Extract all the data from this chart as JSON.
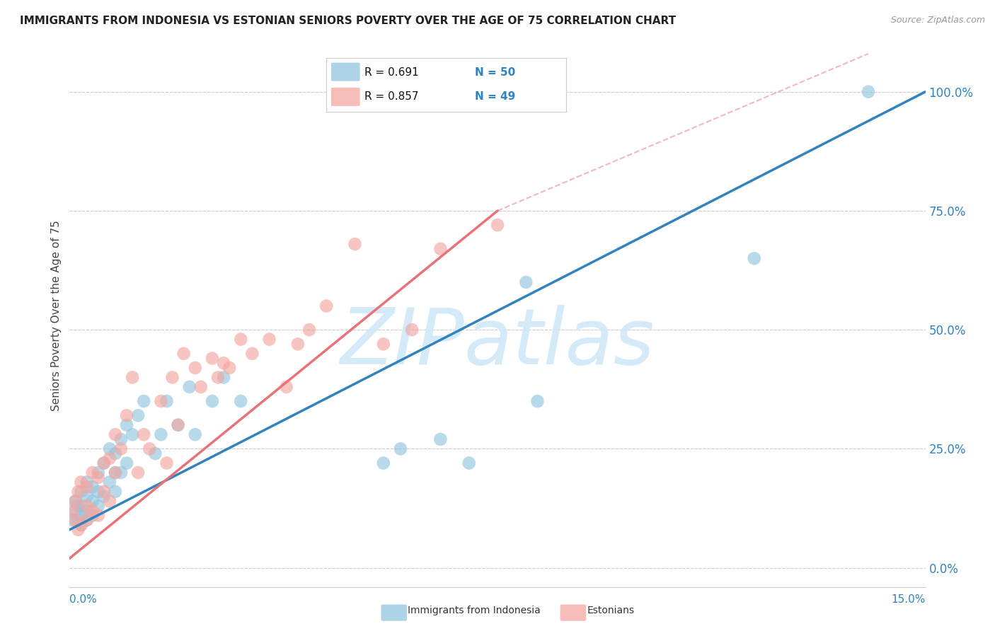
{
  "title": "IMMIGRANTS FROM INDONESIA VS ESTONIAN SENIORS POVERTY OVER THE AGE OF 75 CORRELATION CHART",
  "source": "Source: ZipAtlas.com",
  "ylabel": "Seniors Poverty Over the Age of 75",
  "ytick_labels": [
    "0.0%",
    "25.0%",
    "50.0%",
    "75.0%",
    "100.0%"
  ],
  "ytick_vals": [
    0.0,
    0.25,
    0.5,
    0.75,
    1.0
  ],
  "xmin": 0.0,
  "xmax": 0.15,
  "ymin": -0.04,
  "ymax": 1.1,
  "legend_blue_r": "R = 0.691",
  "legend_blue_n": "N = 50",
  "legend_pink_r": "R = 0.857",
  "legend_pink_n": "N = 49",
  "series1_label": "Immigrants from Indonesia",
  "series2_label": "Estonians",
  "blue_color": "#92c5de",
  "blue_line_color": "#3182bd",
  "pink_color": "#f4a6a0",
  "pink_line_color": "#e8727a",
  "watermark_color": "#d0e8f8",
  "background_color": "#ffffff",
  "grid_color": "#cccccc",
  "blue_scatter_x": [
    0.0005,
    0.001,
    0.001,
    0.0015,
    0.0015,
    0.002,
    0.002,
    0.002,
    0.002,
    0.003,
    0.003,
    0.003,
    0.003,
    0.004,
    0.004,
    0.004,
    0.005,
    0.005,
    0.005,
    0.006,
    0.006,
    0.007,
    0.007,
    0.008,
    0.008,
    0.008,
    0.009,
    0.009,
    0.01,
    0.01,
    0.011,
    0.012,
    0.013,
    0.015,
    0.016,
    0.017,
    0.019,
    0.021,
    0.022,
    0.025,
    0.027,
    0.03,
    0.055,
    0.058,
    0.065,
    0.07,
    0.08,
    0.082,
    0.12,
    0.14
  ],
  "blue_scatter_y": [
    0.1,
    0.12,
    0.14,
    0.1,
    0.13,
    0.09,
    0.11,
    0.13,
    0.16,
    0.1,
    0.12,
    0.15,
    0.18,
    0.11,
    0.14,
    0.17,
    0.13,
    0.16,
    0.2,
    0.15,
    0.22,
    0.18,
    0.25,
    0.16,
    0.2,
    0.24,
    0.2,
    0.27,
    0.22,
    0.3,
    0.28,
    0.32,
    0.35,
    0.24,
    0.28,
    0.35,
    0.3,
    0.38,
    0.28,
    0.35,
    0.4,
    0.35,
    0.22,
    0.25,
    0.27,
    0.22,
    0.6,
    0.35,
    0.65,
    1.0
  ],
  "pink_scatter_x": [
    0.0005,
    0.001,
    0.001,
    0.0015,
    0.0015,
    0.002,
    0.002,
    0.003,
    0.003,
    0.003,
    0.004,
    0.004,
    0.005,
    0.005,
    0.006,
    0.006,
    0.007,
    0.007,
    0.008,
    0.008,
    0.009,
    0.01,
    0.011,
    0.012,
    0.013,
    0.014,
    0.016,
    0.017,
    0.018,
    0.019,
    0.02,
    0.022,
    0.023,
    0.025,
    0.026,
    0.027,
    0.028,
    0.03,
    0.032,
    0.035,
    0.038,
    0.04,
    0.042,
    0.045,
    0.05,
    0.055,
    0.06,
    0.065,
    0.075
  ],
  "pink_scatter_y": [
    0.12,
    0.1,
    0.14,
    0.08,
    0.16,
    0.09,
    0.18,
    0.1,
    0.13,
    0.17,
    0.12,
    0.2,
    0.11,
    0.19,
    0.16,
    0.22,
    0.14,
    0.23,
    0.2,
    0.28,
    0.25,
    0.32,
    0.4,
    0.2,
    0.28,
    0.25,
    0.35,
    0.22,
    0.4,
    0.3,
    0.45,
    0.42,
    0.38,
    0.44,
    0.4,
    0.43,
    0.42,
    0.48,
    0.45,
    0.48,
    0.38,
    0.47,
    0.5,
    0.55,
    0.68,
    0.47,
    0.5,
    0.67,
    0.72
  ],
  "blue_line_x0": 0.0,
  "blue_line_y0": 0.08,
  "blue_line_x1": 0.15,
  "blue_line_y1": 1.0,
  "pink_line_x0": 0.0,
  "pink_line_y0": 0.02,
  "pink_line_x1": 0.075,
  "pink_line_y1": 0.75,
  "dash_line_x0": 0.075,
  "dash_line_y0": 0.75,
  "dash_line_x1": 0.14,
  "dash_line_y1": 1.08
}
